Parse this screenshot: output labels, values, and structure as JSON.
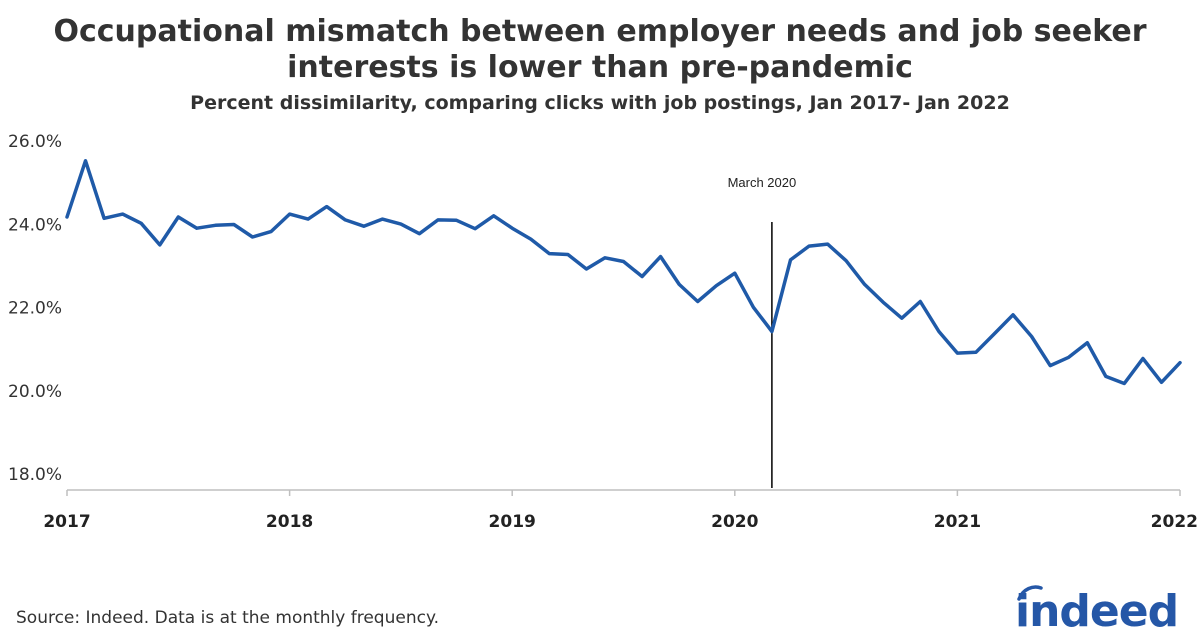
{
  "header": {
    "title_line1": "Occupational mismatch between employer needs and job seeker",
    "title_line2": "interests is lower than pre-pandemic",
    "subtitle": "Percent dissimilarity, comparing clicks with job postings, Jan 2017- Jan 2022"
  },
  "footer": {
    "source": "Source: Indeed. Data is at the monthly frequency.",
    "logo_text": "indeed"
  },
  "colors": {
    "line": "#1f5aa8",
    "axis": "#bfbfbf",
    "marker": "#000000",
    "text": "#333333",
    "brand": "#2557a7"
  },
  "chart_data": {
    "type": "line",
    "title": "Occupational mismatch between employer needs and job seeker interests is lower than pre-pandemic",
    "subtitle": "Percent dissimilarity, comparing clicks with job postings, Jan 2017- Jan 2022",
    "xlabel": "",
    "ylabel": "",
    "x_start": "2017-01",
    "x_end": "2022-01",
    "xlim": [
      "2017-01",
      "2022-01"
    ],
    "ylim": [
      18.0,
      26.0
    ],
    "y_ticks": [
      18.0,
      20.0,
      22.0,
      24.0,
      26.0
    ],
    "y_tick_labels": [
      "18.0%",
      "20.0%",
      "22.0%",
      "24.0%",
      "26.0%"
    ],
    "x_tick_labels": [
      "2017",
      "2018",
      "2019",
      "2020",
      "2021",
      "2022"
    ],
    "grid": false,
    "series": [
      {
        "x": [
          "2017-01",
          "2017-02",
          "2017-03",
          "2017-04",
          "2017-05",
          "2017-06",
          "2017-07",
          "2017-08",
          "2017-09",
          "2017-10",
          "2017-11",
          "2017-12",
          "2018-01",
          "2018-02",
          "2018-03",
          "2018-04",
          "2018-05",
          "2018-06",
          "2018-07",
          "2018-08",
          "2018-09",
          "2018-10",
          "2018-11",
          "2018-12",
          "2019-01",
          "2019-02",
          "2019-03",
          "2019-04",
          "2019-05",
          "2019-06",
          "2019-07",
          "2019-08",
          "2019-09",
          "2019-10",
          "2019-11",
          "2019-12",
          "2020-01",
          "2020-02",
          "2020-03",
          "2020-04",
          "2020-05",
          "2020-06",
          "2020-07",
          "2020-08",
          "2020-09",
          "2020-10",
          "2020-11",
          "2020-12",
          "2021-01",
          "2021-02",
          "2021-03",
          "2021-04",
          "2021-05",
          "2021-06",
          "2021-07",
          "2021-08",
          "2021-09",
          "2021-10",
          "2021-11",
          "2021-12",
          "2022-01"
        ],
        "values": [
          24.15,
          25.5,
          24.12,
          24.22,
          24.0,
          23.48,
          24.15,
          23.88,
          23.95,
          23.97,
          23.67,
          23.8,
          24.22,
          24.1,
          24.4,
          24.08,
          23.93,
          24.1,
          23.98,
          23.75,
          24.08,
          24.07,
          23.87,
          24.18,
          23.88,
          23.62,
          23.27,
          23.25,
          22.9,
          23.17,
          23.08,
          22.72,
          23.2,
          22.53,
          22.12,
          22.5,
          22.8,
          21.98,
          21.4,
          23.12,
          23.45,
          23.5,
          23.1,
          22.53,
          22.1,
          21.72,
          22.12,
          21.4,
          20.88,
          20.9,
          21.35,
          21.8,
          21.28,
          20.58,
          20.78,
          21.13,
          20.32,
          20.15,
          20.75,
          20.18,
          20.65
        ]
      }
    ],
    "annotations": [
      {
        "x": "2020-03",
        "label": "March 2020",
        "type": "vertical-line"
      }
    ]
  }
}
